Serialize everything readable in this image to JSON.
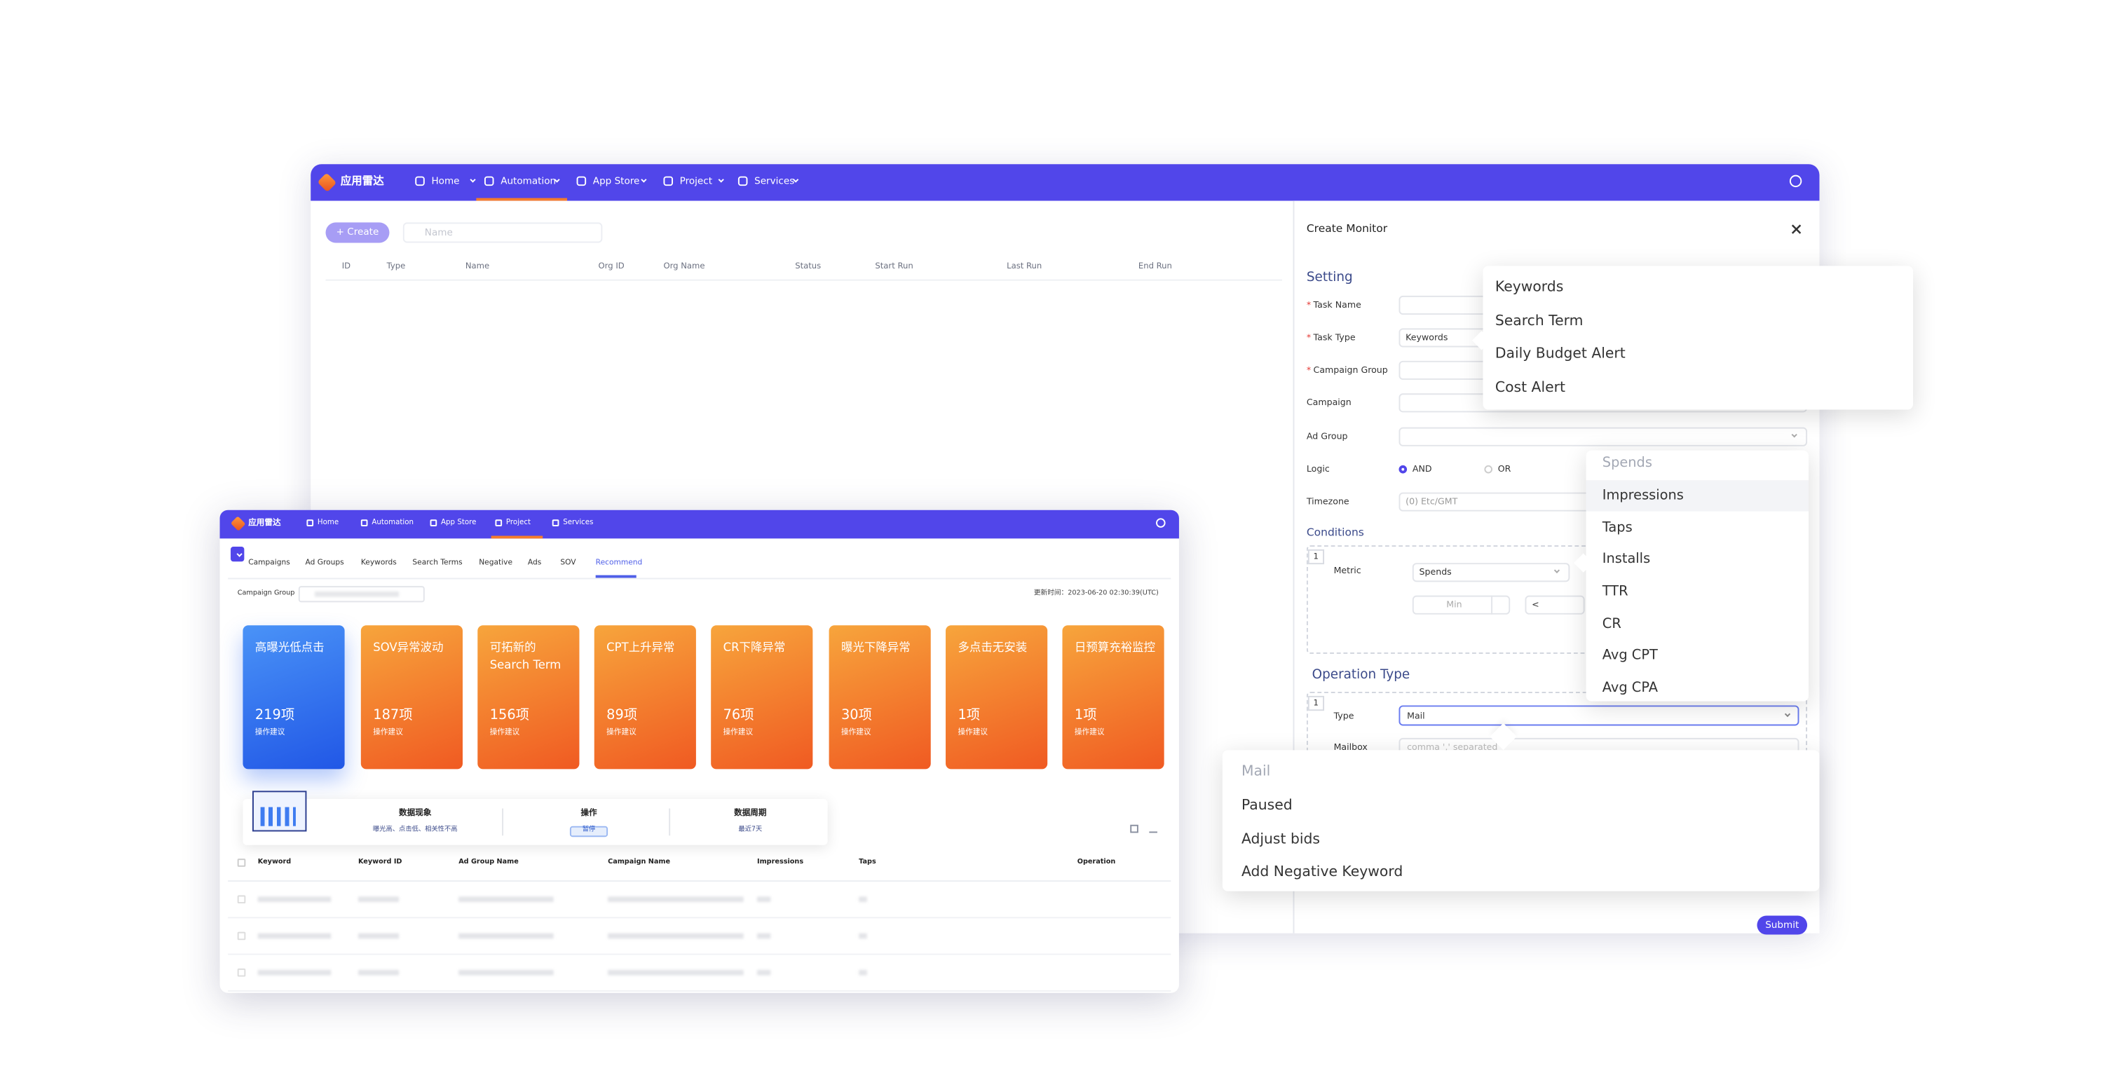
{
  "back_window": {
    "brand": "应用雷达",
    "nav": [
      "Home",
      "Automation",
      "App Store",
      "Project",
      "Services"
    ],
    "create_button": "+ Create",
    "search_placeholder": "Name",
    "columns": [
      "ID",
      "Type",
      "Name",
      "Org ID",
      "Org Name",
      "Status",
      "Start Run",
      "Last Run",
      "End Run"
    ]
  },
  "create_monitor": {
    "title": "Create Monitor",
    "setting": "Setting",
    "required_mark": "*",
    "fields": [
      {
        "label": "Task Name",
        "required": true
      },
      {
        "label": "Task Type",
        "required": true,
        "value": "Keywords"
      },
      {
        "label": "Campaign Group",
        "required": true
      },
      {
        "label": "Campaign",
        "required": false
      },
      {
        "label": "Ad Group",
        "required": false
      },
      {
        "label": "Logic",
        "required": false
      },
      {
        "label": "Timezone",
        "required": false,
        "value": "(0) Etc/GMT"
      }
    ],
    "logic_options": [
      "AND",
      "OR"
    ],
    "conditions": "Conditions",
    "condition_index": "1",
    "metric_label": "Metric",
    "metric_value": "Spends",
    "min_placeholder": "Min",
    "operator": "<",
    "operation_type": "Operation Type",
    "operation_index": "1",
    "type_label": "Type",
    "type_value": "Mail",
    "mailbox_label": "Mailbox",
    "mailbox_placeholder": "comma ',' separated",
    "submit": "Submit"
  },
  "task_type_dropdown": [
    "Keywords",
    "Search Term",
    "Daily Budget Alert",
    "Cost Alert"
  ],
  "metric_dropdown": [
    "Spends",
    "Impressions",
    "Taps",
    "Installs",
    "TTR",
    "CR",
    "Avg CPT",
    "Avg CPA"
  ],
  "type_dropdown": [
    "Mail",
    "Paused",
    "Adjust bids",
    "Add Negative Keyword"
  ],
  "front_window": {
    "brand": "应用雷达",
    "nav": [
      "Home",
      "Automation",
      "App Store",
      "Project",
      "Services"
    ],
    "tabs": [
      "Campaigns",
      "Ad Groups",
      "Keywords",
      "Search Terms",
      "Negative",
      "Ads",
      "SOV",
      "Recommend"
    ],
    "campaign_group_label": "Campaign Group",
    "updated": "更新时间：2023-06-20 02:30:39(UTC)",
    "cards": [
      {
        "title": "高曝光低点击",
        "count": "219项",
        "sub": "操作建议"
      },
      {
        "title": "SOV异常波动",
        "count": "187项",
        "sub": "操作建议"
      },
      {
        "title": "可拓新的Search Term",
        "count": "156项",
        "sub": "操作建议"
      },
      {
        "title": "CPT上升异常",
        "count": "89项",
        "sub": "操作建议"
      },
      {
        "title": "CR下降异常",
        "count": "76项",
        "sub": "操作建议"
      },
      {
        "title": "曝光下降异常",
        "count": "30项",
        "sub": "操作建议"
      },
      {
        "title": "多点击无安装",
        "count": "1项",
        "sub": "操作建议"
      },
      {
        "title": "日预算充裕监控",
        "count": "1项",
        "sub": "操作建议"
      }
    ],
    "summary": [
      {
        "title": "数据现象",
        "text": "曝光高、点击低、相关性不高"
      },
      {
        "title": "操作",
        "text": "暂停"
      },
      {
        "title": "数据周期",
        "text": "最近7天"
      }
    ],
    "table_columns": [
      "Keyword",
      "Keyword ID",
      "Ad Group Name",
      "Campaign Name",
      "Impressions",
      "Taps",
      "Operation"
    ]
  }
}
